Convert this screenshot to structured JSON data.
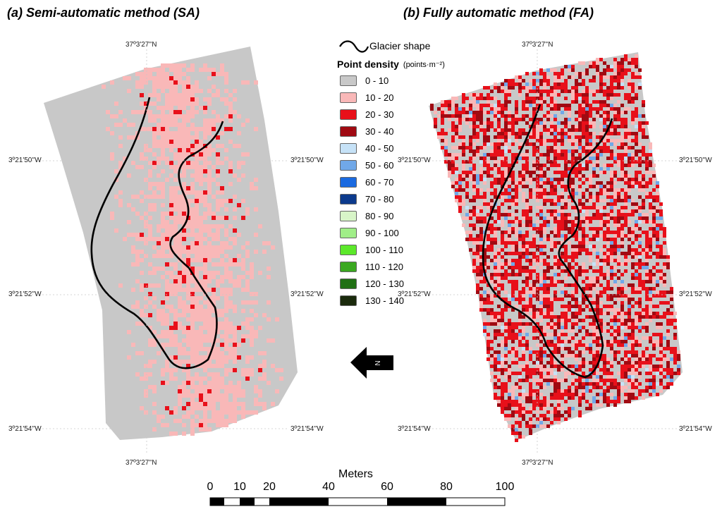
{
  "panels": {
    "a_title": "(a) Semi-automatic method (SA)",
    "b_title": "(b) Fully automatic method (FA)"
  },
  "coords": {
    "lat_top": "37º3'27''N",
    "lat_bottom": "37º3'27''N",
    "lon_50": "3º21'50''W",
    "lon_52": "3º21'52''W",
    "lon_54": "3º21'54''W"
  },
  "legend": {
    "glacier_label": "Glacier shape",
    "title": "Point density",
    "unit": "(points·m⁻²)",
    "classes": [
      {
        "label": "0 - 10",
        "color": "#c8c8c8"
      },
      {
        "label": "10 - 20",
        "color": "#f9b8b8"
      },
      {
        "label": "20 - 30",
        "color": "#e8101a"
      },
      {
        "label": "30 - 40",
        "color": "#a00a12"
      },
      {
        "label": "40 - 50",
        "color": "#c6e2f7"
      },
      {
        "label": "50 - 60",
        "color": "#70a8e8"
      },
      {
        "label": "60 - 70",
        "color": "#1a6ae0"
      },
      {
        "label": "70 - 80",
        "color": "#0c3a8c"
      },
      {
        "label": "80 - 90",
        "color": "#d8f5c8"
      },
      {
        "label": "90 - 100",
        "color": "#a0ee88"
      },
      {
        "label": "100 - 110",
        "color": "#5ce82a"
      },
      {
        "label": "110 - 120",
        "color": "#3aa820"
      },
      {
        "label": "120 - 130",
        "color": "#207014"
      },
      {
        "label": "130 - 140",
        "color": "#1a2a0c"
      }
    ]
  },
  "north_label": "N",
  "scale": {
    "title": "Meters",
    "ticks": [
      "0",
      "10",
      "20",
      "40",
      "60",
      "80",
      "100"
    ]
  },
  "colors": {
    "background": "#c8c8c8",
    "glacier_line": "#000000"
  }
}
